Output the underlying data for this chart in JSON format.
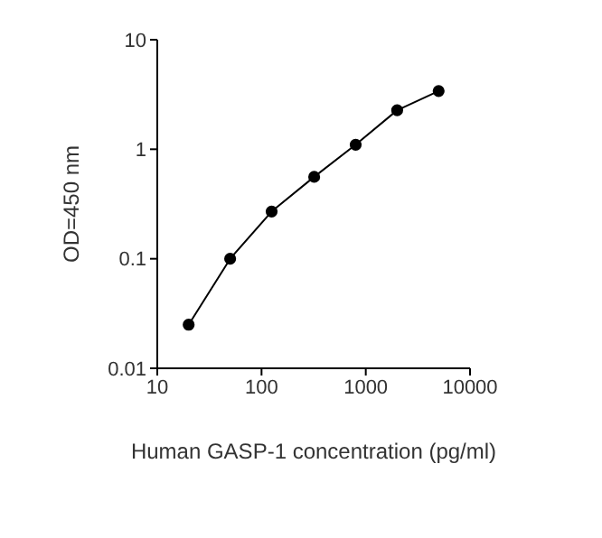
{
  "chart_data": {
    "type": "line",
    "xlabel": "Human GASP-1 concentration (pg/ml)",
    "ylabel": "OD=450 nm",
    "x": [
      20,
      50,
      125,
      320,
      800,
      2000,
      5000
    ],
    "series": [
      {
        "color": "#000000",
        "values": [
          0.025,
          0.1,
          0.27,
          0.56,
          1.1,
          2.27,
          3.4
        ]
      }
    ],
    "log": "xy",
    "xlim": [
      10,
      10000
    ],
    "xticks": [
      10,
      100,
      1000,
      10000
    ],
    "ylim": [
      0.01,
      10
    ],
    "yticks": [
      0.01,
      0.1,
      1,
      10
    ],
    "marker": "circle",
    "line_style": "solid",
    "legend": false
  }
}
